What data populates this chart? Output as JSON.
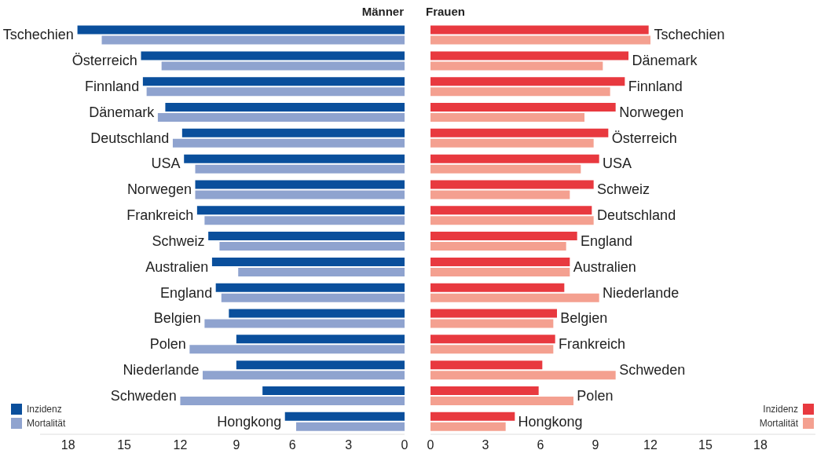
{
  "chart_data": [
    {
      "type": "bar",
      "orientation": "horizontal",
      "title": "Männer",
      "categories": [
        "Tschechien",
        "Österreich",
        "Finnland",
        "Dänemark",
        "Deutschland",
        "USA",
        "Norwegen",
        "Frankreich",
        "Schweiz",
        "Australien",
        "England",
        "Belgien",
        "Polen",
        "Niederlande",
        "Schweden",
        "Hongkong"
      ],
      "series": [
        {
          "name": "Inzidenz",
          "color": "#0a4f9c",
          "values": [
            17.5,
            14.1,
            14.0,
            12.8,
            11.9,
            11.8,
            11.2,
            11.1,
            10.5,
            10.3,
            10.1,
            9.4,
            9.0,
            9.0,
            7.6,
            6.4
          ]
        },
        {
          "name": "Mortalität",
          "color": "#8fa3cf",
          "values": [
            16.2,
            13.0,
            13.8,
            13.2,
            12.4,
            11.2,
            11.2,
            10.7,
            9.9,
            8.9,
            9.8,
            10.7,
            11.5,
            10.8,
            12.0,
            5.8
          ]
        }
      ],
      "xlim": [
        19.5,
        0
      ],
      "xticks": [
        18,
        15,
        12,
        9,
        6,
        3,
        0
      ],
      "grid": false,
      "legend": "bottom left"
    },
    {
      "type": "bar",
      "orientation": "horizontal",
      "title": "Frauen",
      "categories": [
        "Tschechien",
        "Dänemark",
        "Finnland",
        "Norwegen",
        "Österreich",
        "USA",
        "Schweiz",
        "Deutschland",
        "England",
        "Australien",
        "Niederlande",
        "Belgien",
        "Frankreich",
        "Schweden",
        "Polen",
        "Hongkong"
      ],
      "series": [
        {
          "name": "Inzidenz",
          "color": "#e8393f",
          "values": [
            11.9,
            10.8,
            10.6,
            10.1,
            9.7,
            9.2,
            8.9,
            8.8,
            8.0,
            7.6,
            7.3,
            6.9,
            6.8,
            6.1,
            5.9,
            4.6
          ]
        },
        {
          "name": "Mortalität",
          "color": "#f4a090",
          "values": [
            12.0,
            9.4,
            9.8,
            8.4,
            8.9,
            8.2,
            7.6,
            8.9,
            7.4,
            7.6,
            9.2,
            6.7,
            6.7,
            10.1,
            7.8,
            4.1
          ]
        }
      ],
      "xlim": [
        0,
        21
      ],
      "xticks": [
        0,
        3,
        6,
        9,
        12,
        15,
        18
      ],
      "grid": false,
      "legend": "bottom right"
    }
  ]
}
